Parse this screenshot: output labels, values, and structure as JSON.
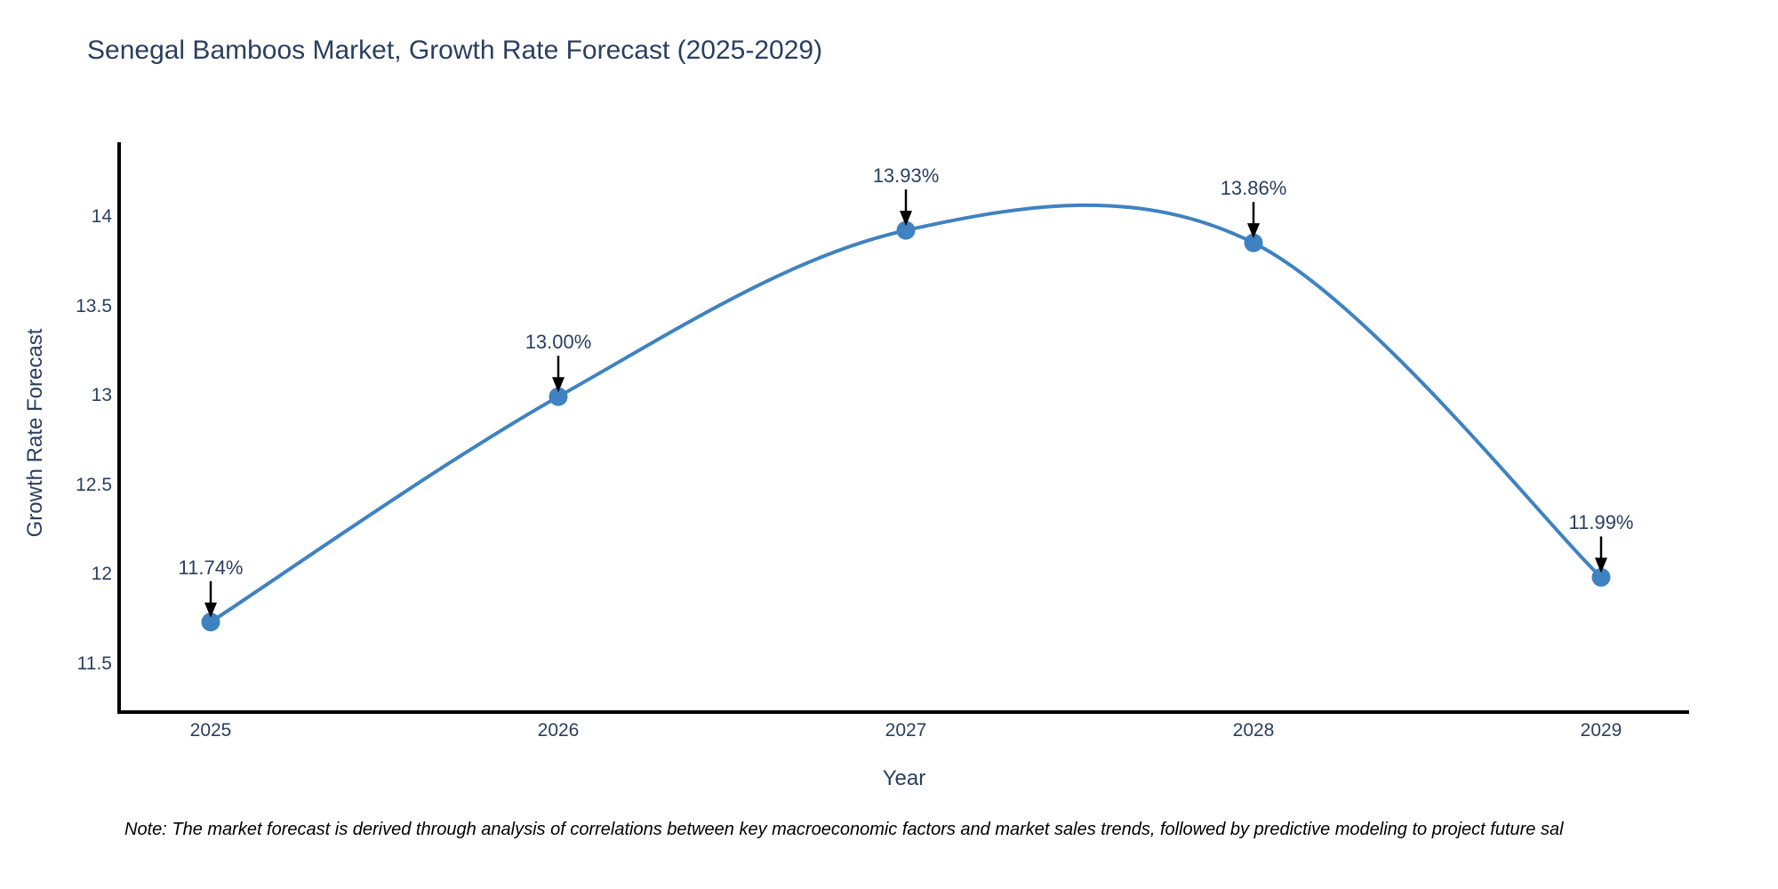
{
  "title": "Senegal Bamboos Market, Growth Rate Forecast (2025-2029)",
  "footnote": "Note: The market forecast is derived through analysis of correlations between key macroeconomic factors and market sales trends, followed by predictive modeling to project future sal",
  "colors": {
    "line": "#3f82c1",
    "marker": "#3f82c1",
    "axis": "#000000",
    "arrow": "#000000",
    "chart_text": "#2a3f5f",
    "note_text": "#000000",
    "background": "#ffffff"
  },
  "chart_data": {
    "type": "line",
    "line_shape": "spline",
    "title": "Senegal Bamboos Market, Growth Rate Forecast (2025-2029)",
    "xlabel": "Year",
    "ylabel": "Growth Rate Forecast",
    "x": [
      "2025",
      "2026",
      "2027",
      "2028",
      "2029"
    ],
    "series": [
      {
        "name": "Growth Rate Forecast",
        "values": [
          11.74,
          13.0,
          13.93,
          13.86,
          11.99
        ],
        "point_labels": [
          "11.74%",
          "13.00%",
          "13.93%",
          "13.86%",
          "11.99%"
        ]
      }
    ],
    "ytick_labels": [
      "11.5",
      "12",
      "12.5",
      "13",
      "13.5",
      "14"
    ],
    "ytick_values": [
      11.5,
      12,
      12.5,
      13,
      13.5,
      14
    ],
    "ylim": [
      11.24,
      14.42
    ],
    "grid": false,
    "legend": "none",
    "annotations": "black down-arrows from each percentage label to its data point",
    "markers": "filled circles"
  }
}
